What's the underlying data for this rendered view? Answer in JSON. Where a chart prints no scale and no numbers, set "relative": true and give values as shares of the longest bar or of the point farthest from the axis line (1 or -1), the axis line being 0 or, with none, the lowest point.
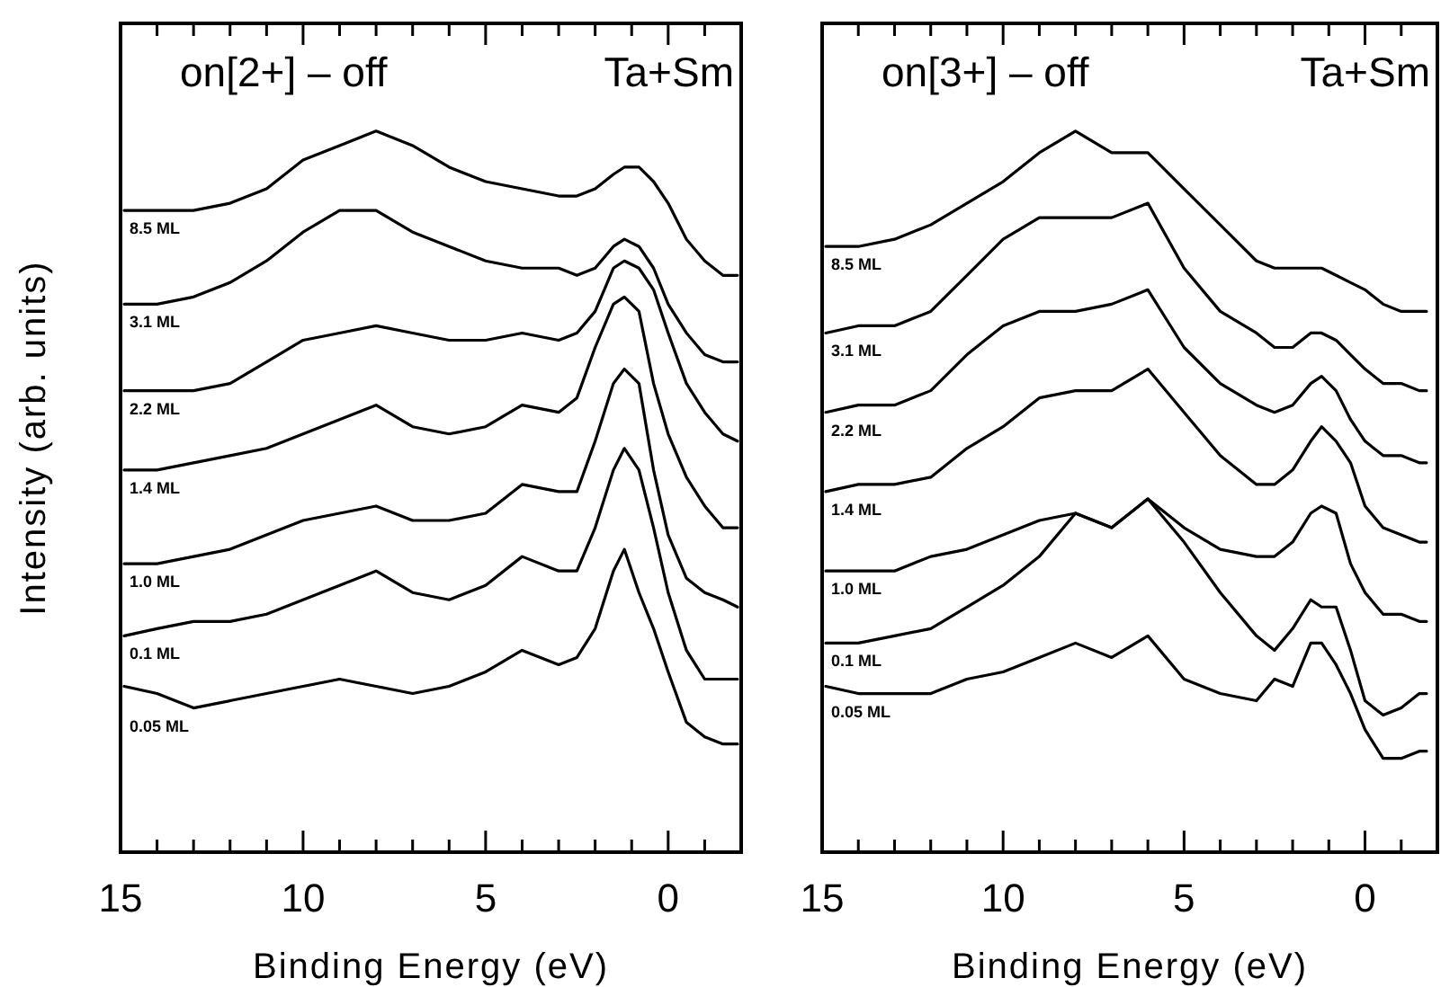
{
  "chart_data": [
    {
      "type": "line",
      "title": "on[2+] – off",
      "subtitle": "Ta+Sm",
      "xlabel": "Binding Energy (eV)",
      "ylabel": "Intensity (arb. units)",
      "relative": true,
      "tick_labels": "x",
      "xlim": [
        15,
        -2
      ],
      "xticks": [
        15,
        {
          "value": 14,
          "label": null
        },
        {
          "value": 13,
          "label": null
        },
        {
          "value": 12,
          "label": null
        },
        {
          "value": 11,
          "label": null
        },
        10,
        {
          "value": 9,
          "label": null
        },
        {
          "value": 8,
          "label": null
        },
        {
          "value": 7,
          "label": null
        },
        {
          "value": 6,
          "label": null
        },
        5,
        {
          "value": 4,
          "label": null
        },
        {
          "value": 3,
          "label": null
        },
        {
          "value": 2,
          "label": null
        },
        {
          "value": 1,
          "label": null
        },
        0,
        {
          "value": -1,
          "label": null
        }
      ],
      "x": [
        14.9,
        14,
        13,
        12,
        11,
        10,
        9,
        8,
        7,
        6,
        5,
        4,
        3,
        2.5,
        2,
        1.5,
        1.2,
        0.8,
        0.4,
        0,
        -0.5,
        -1,
        -1.5,
        -1.9
      ],
      "series": [
        {
          "name": "8.5 ML",
          "color": "#000000",
          "values": [
            0.89,
            0.89,
            0.89,
            0.9,
            0.92,
            0.96,
            0.98,
            1.0,
            0.98,
            0.95,
            0.93,
            0.92,
            0.91,
            0.91,
            0.92,
            0.94,
            0.95,
            0.95,
            0.93,
            0.9,
            0.85,
            0.82,
            0.8,
            0.8
          ]
        },
        {
          "name": "3.1 ML",
          "color": "#000000",
          "values": [
            0.76,
            0.76,
            0.77,
            0.79,
            0.82,
            0.86,
            0.89,
            0.89,
            0.86,
            0.84,
            0.82,
            0.81,
            0.81,
            0.8,
            0.81,
            0.84,
            0.85,
            0.84,
            0.81,
            0.76,
            0.72,
            0.69,
            0.68,
            0.68
          ]
        },
        {
          "name": "2.2 ML",
          "color": "#000000",
          "values": [
            0.64,
            0.64,
            0.64,
            0.65,
            0.68,
            0.71,
            0.72,
            0.73,
            0.72,
            0.71,
            0.71,
            0.72,
            0.71,
            0.72,
            0.75,
            0.81,
            0.82,
            0.81,
            0.78,
            0.72,
            0.65,
            0.61,
            0.58,
            0.57
          ]
        },
        {
          "name": "1.4 ML",
          "color": "#000000",
          "values": [
            0.53,
            0.53,
            0.54,
            0.55,
            0.56,
            0.58,
            0.6,
            0.62,
            0.59,
            0.58,
            0.59,
            0.62,
            0.61,
            0.63,
            0.7,
            0.76,
            0.77,
            0.75,
            0.65,
            0.58,
            0.52,
            0.48,
            0.45,
            0.45
          ]
        },
        {
          "name": "1.0 ML",
          "color": "#000000",
          "values": [
            0.4,
            0.4,
            0.41,
            0.42,
            0.44,
            0.46,
            0.47,
            0.48,
            0.46,
            0.46,
            0.47,
            0.51,
            0.5,
            0.5,
            0.57,
            0.65,
            0.67,
            0.65,
            0.53,
            0.44,
            0.38,
            0.36,
            0.35,
            0.34
          ]
        },
        {
          "name": "0.1 ML",
          "color": "#000000",
          "values": [
            0.3,
            0.31,
            0.32,
            0.32,
            0.33,
            0.35,
            0.37,
            0.39,
            0.36,
            0.35,
            0.37,
            0.41,
            0.39,
            0.39,
            0.45,
            0.53,
            0.56,
            0.53,
            0.45,
            0.36,
            0.28,
            0.24,
            0.24,
            0.24
          ]
        },
        {
          "name": "0.05 ML",
          "color": "#000000",
          "values": [
            0.23,
            0.22,
            0.2,
            0.21,
            0.22,
            0.23,
            0.24,
            0.23,
            0.22,
            0.23,
            0.25,
            0.28,
            0.26,
            0.27,
            0.31,
            0.39,
            0.42,
            0.36,
            0.31,
            0.25,
            0.18,
            0.16,
            0.15,
            0.15
          ]
        }
      ]
    },
    {
      "type": "line",
      "title": "on[3+] – off",
      "subtitle": "Ta+Sm",
      "xlabel": "Binding Energy (eV)",
      "relative": true,
      "tick_labels": "x",
      "xlim": [
        15,
        -2
      ],
      "xticks": [
        15,
        {
          "value": 14,
          "label": null
        },
        {
          "value": 13,
          "label": null
        },
        {
          "value": 12,
          "label": null
        },
        {
          "value": 11,
          "label": null
        },
        10,
        {
          "value": 9,
          "label": null
        },
        {
          "value": 8,
          "label": null
        },
        {
          "value": 7,
          "label": null
        },
        {
          "value": 6,
          "label": null
        },
        5,
        {
          "value": 4,
          "label": null
        },
        {
          "value": 3,
          "label": null
        },
        {
          "value": 2,
          "label": null
        },
        {
          "value": 1,
          "label": null
        },
        0,
        {
          "value": -1,
          "label": null
        }
      ],
      "x": [
        14.9,
        14,
        13,
        12,
        11,
        10,
        9,
        8,
        7,
        6,
        5,
        4,
        3,
        2.5,
        2,
        1.5,
        1.2,
        0.8,
        0.4,
        0,
        -0.5,
        -1,
        -1.5,
        -1.7
      ],
      "series": [
        {
          "name": "8.5 ML",
          "color": "#000000",
          "values": [
            0.84,
            0.84,
            0.85,
            0.87,
            0.9,
            0.93,
            0.97,
            1.0,
            0.97,
            0.97,
            0.92,
            0.87,
            0.82,
            0.81,
            0.81,
            0.81,
            0.81,
            0.8,
            0.79,
            0.78,
            0.76,
            0.75,
            0.75,
            0.75
          ]
        },
        {
          "name": "3.1 ML",
          "color": "#000000",
          "values": [
            0.72,
            0.73,
            0.73,
            0.75,
            0.8,
            0.85,
            0.88,
            0.88,
            0.88,
            0.9,
            0.81,
            0.75,
            0.72,
            0.7,
            0.7,
            0.72,
            0.72,
            0.71,
            0.69,
            0.67,
            0.65,
            0.65,
            0.64,
            0.64
          ]
        },
        {
          "name": "2.2 ML",
          "color": "#000000",
          "values": [
            0.61,
            0.62,
            0.62,
            0.64,
            0.69,
            0.73,
            0.75,
            0.75,
            0.76,
            0.78,
            0.7,
            0.65,
            0.62,
            0.61,
            0.62,
            0.65,
            0.66,
            0.64,
            0.6,
            0.57,
            0.55,
            0.55,
            0.54,
            0.54
          ]
        },
        {
          "name": "1.4 ML",
          "color": "#000000",
          "values": [
            0.5,
            0.51,
            0.51,
            0.52,
            0.56,
            0.59,
            0.63,
            0.64,
            0.64,
            0.67,
            0.61,
            0.55,
            0.51,
            0.51,
            0.53,
            0.57,
            0.59,
            0.57,
            0.54,
            0.48,
            0.45,
            0.44,
            0.43,
            0.43
          ]
        },
        {
          "name": "1.0 ML",
          "color": "#000000",
          "values": [
            0.39,
            0.39,
            0.39,
            0.41,
            0.42,
            0.44,
            0.46,
            0.47,
            0.45,
            0.49,
            0.45,
            0.42,
            0.41,
            0.41,
            0.43,
            0.47,
            0.48,
            0.47,
            0.4,
            0.36,
            0.33,
            0.33,
            0.32,
            0.32
          ]
        },
        {
          "name": "0.1 ML",
          "color": "#000000",
          "values": [
            0.29,
            0.29,
            0.3,
            0.31,
            0.34,
            0.37,
            0.41,
            0.47,
            0.45,
            0.49,
            0.43,
            0.36,
            0.3,
            0.28,
            0.31,
            0.35,
            0.34,
            0.34,
            0.28,
            0.21,
            0.19,
            0.2,
            0.22,
            0.22
          ]
        },
        {
          "name": "0.05 ML",
          "color": "#000000",
          "values": [
            0.23,
            0.22,
            0.22,
            0.22,
            0.24,
            0.25,
            0.27,
            0.29,
            0.27,
            0.3,
            0.24,
            0.22,
            0.21,
            0.24,
            0.23,
            0.29,
            0.29,
            0.26,
            0.22,
            0.17,
            0.13,
            0.13,
            0.14,
            0.14
          ]
        }
      ]
    }
  ]
}
